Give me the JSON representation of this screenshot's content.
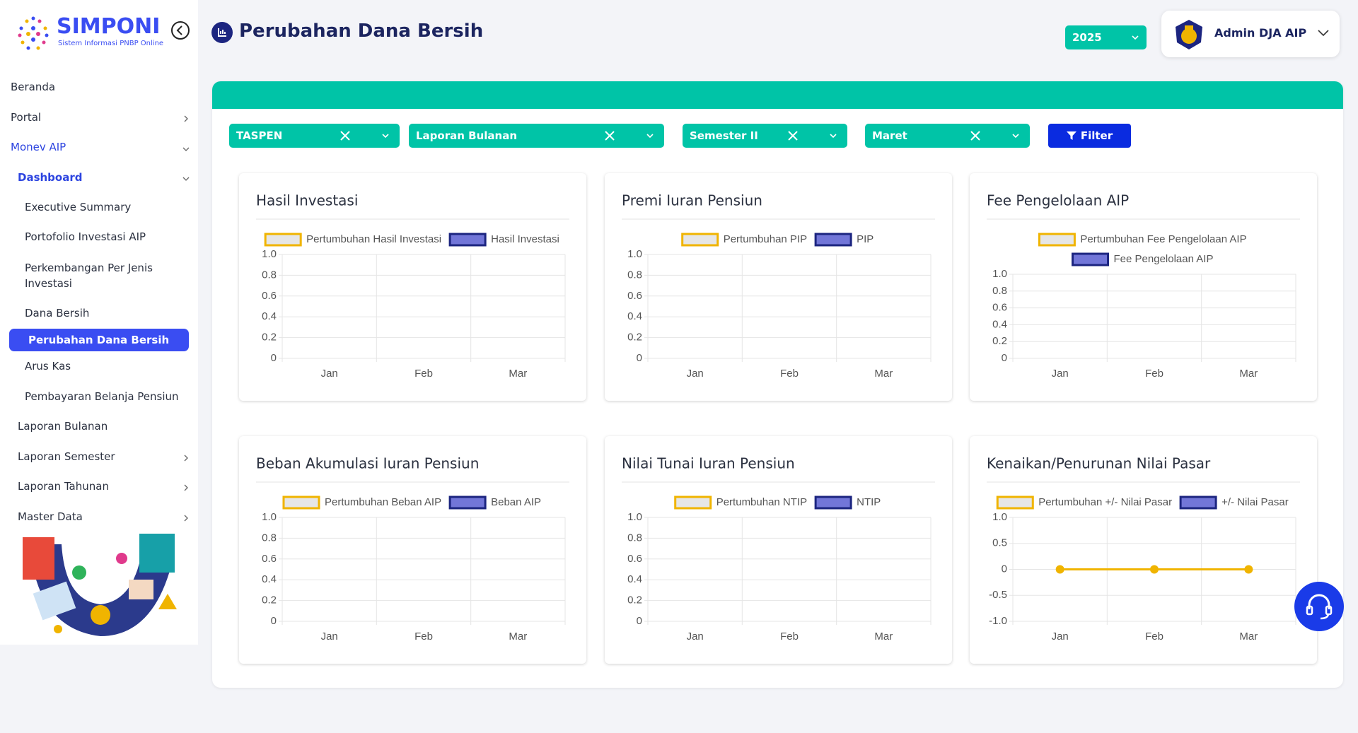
{
  "sidebar": {
    "logo_title": "SIMPONI",
    "logo_subtitle": "Sistem Informasi PNBP Online",
    "menu": [
      "Beranda",
      "Portal",
      "Monev AIP",
      "Dashboard",
      "Executive Summary",
      "Portofolio Investasi AIP",
      "Perkembangan Per Jenis Investasi",
      "Dana Bersih",
      "Perubahan Dana Bersih",
      "Arus Kas",
      "Pembayaran Belanja Pensiun",
      "Laporan Bulanan",
      "Laporan Semester",
      "Laporan Tahunan",
      "Master Data"
    ]
  },
  "header": {
    "title": "Perubahan Dana Bersih",
    "year": "2025",
    "user": "Admin DJA AIP"
  },
  "filters": [
    "TASPEN",
    "Laporan Bulanan",
    "Semester II",
    "Maret"
  ],
  "filter_button": "Filter",
  "chart_data": [
    {
      "type": "bar",
      "title": "Hasil Investasi",
      "categories": [
        "Jan",
        "Feb",
        "Mar"
      ],
      "series": [
        {
          "name": "Pertumbuhan Hasil Investasi",
          "type": "line",
          "color": "#f0b400",
          "values": [
            null,
            null,
            null
          ]
        },
        {
          "name": "Hasil Investasi",
          "type": "bar",
          "color": "#1c2580",
          "values": [
            null,
            null,
            null
          ]
        }
      ],
      "ylim": [
        0,
        1
      ],
      "yticks": [
        0,
        0.2,
        0.4,
        0.6,
        0.8,
        {
          "value": 1,
          "label": "1.0"
        }
      ],
      "grid": true,
      "legend": "top"
    },
    {
      "type": "bar",
      "title": "Premi Iuran Pensiun",
      "categories": [
        "Jan",
        "Feb",
        "Mar"
      ],
      "series": [
        {
          "name": "Pertumbuhan PIP",
          "type": "line",
          "color": "#f0b400",
          "values": [
            null,
            null,
            null
          ]
        },
        {
          "name": "PIP",
          "type": "bar",
          "color": "#1c2580",
          "values": [
            null,
            null,
            null
          ]
        }
      ],
      "ylim": [
        0,
        1
      ],
      "yticks": [
        0,
        0.2,
        0.4,
        0.6,
        0.8,
        {
          "value": 1,
          "label": "1.0"
        }
      ],
      "grid": true,
      "legend": "top"
    },
    {
      "type": "bar",
      "title": "Fee Pengelolaan AIP",
      "categories": [
        "Jan",
        "Feb",
        "Mar"
      ],
      "series": [
        {
          "name": "Pertumbuhan Fee Pengelolaan AIP",
          "type": "line",
          "color": "#f0b400",
          "values": [
            null,
            null,
            null
          ]
        },
        {
          "name": "Fee Pengelolaan AIP",
          "type": "bar",
          "color": "#1c2580",
          "values": [
            null,
            null,
            null
          ]
        }
      ],
      "ylim": [
        0,
        1
      ],
      "yticks": [
        0,
        0.2,
        0.4,
        0.6,
        0.8,
        {
          "value": 1,
          "label": "1.0"
        }
      ],
      "grid": true,
      "legend": "top"
    },
    {
      "type": "bar",
      "title": "Beban Akumulasi Iuran Pensiun",
      "categories": [
        "Jan",
        "Feb",
        "Mar"
      ],
      "series": [
        {
          "name": "Pertumbuhan Beban AIP",
          "type": "line",
          "color": "#f0b400",
          "values": [
            null,
            null,
            null
          ]
        },
        {
          "name": "Beban AIP",
          "type": "bar",
          "color": "#1c2580",
          "values": [
            null,
            null,
            null
          ]
        }
      ],
      "ylim": [
        0,
        1
      ],
      "yticks": [
        0,
        0.2,
        0.4,
        0.6,
        0.8,
        {
          "value": 1,
          "label": "1.0"
        }
      ],
      "grid": true,
      "legend": "top"
    },
    {
      "type": "bar",
      "title": "Nilai Tunai Iuran Pensiun",
      "categories": [
        "Jan",
        "Feb",
        "Mar"
      ],
      "series": [
        {
          "name": "Pertumbuhan NTIP",
          "type": "line",
          "color": "#f0b400",
          "values": [
            null,
            null,
            null
          ]
        },
        {
          "name": "NTIP",
          "type": "bar",
          "color": "#1c2580",
          "values": [
            null,
            null,
            null
          ]
        }
      ],
      "ylim": [
        0,
        1
      ],
      "yticks": [
        0,
        0.2,
        0.4,
        0.6,
        0.8,
        {
          "value": 1,
          "label": "1.0"
        }
      ],
      "grid": true,
      "legend": "top"
    },
    {
      "type": "bar",
      "title": "Kenaikan/Penurunan Nilai Pasar",
      "categories": [
        "Jan",
        "Feb",
        "Mar"
      ],
      "series": [
        {
          "name": "Pertumbuhan +/- Nilai Pasar",
          "type": "line",
          "color": "#f0b400",
          "values": [
            0,
            0,
            0
          ]
        },
        {
          "name": "+/- Nilai Pasar",
          "type": "bar",
          "color": "#1c2580",
          "values": [
            0,
            0,
            0
          ]
        }
      ],
      "ylim": [
        -1,
        1
      ],
      "yticks": [
        {
          "value": -1,
          "label": "-1.0"
        },
        -0.5,
        0,
        0.5,
        {
          "value": 1,
          "label": "1.0"
        }
      ],
      "grid": true,
      "legend": "top"
    }
  ]
}
